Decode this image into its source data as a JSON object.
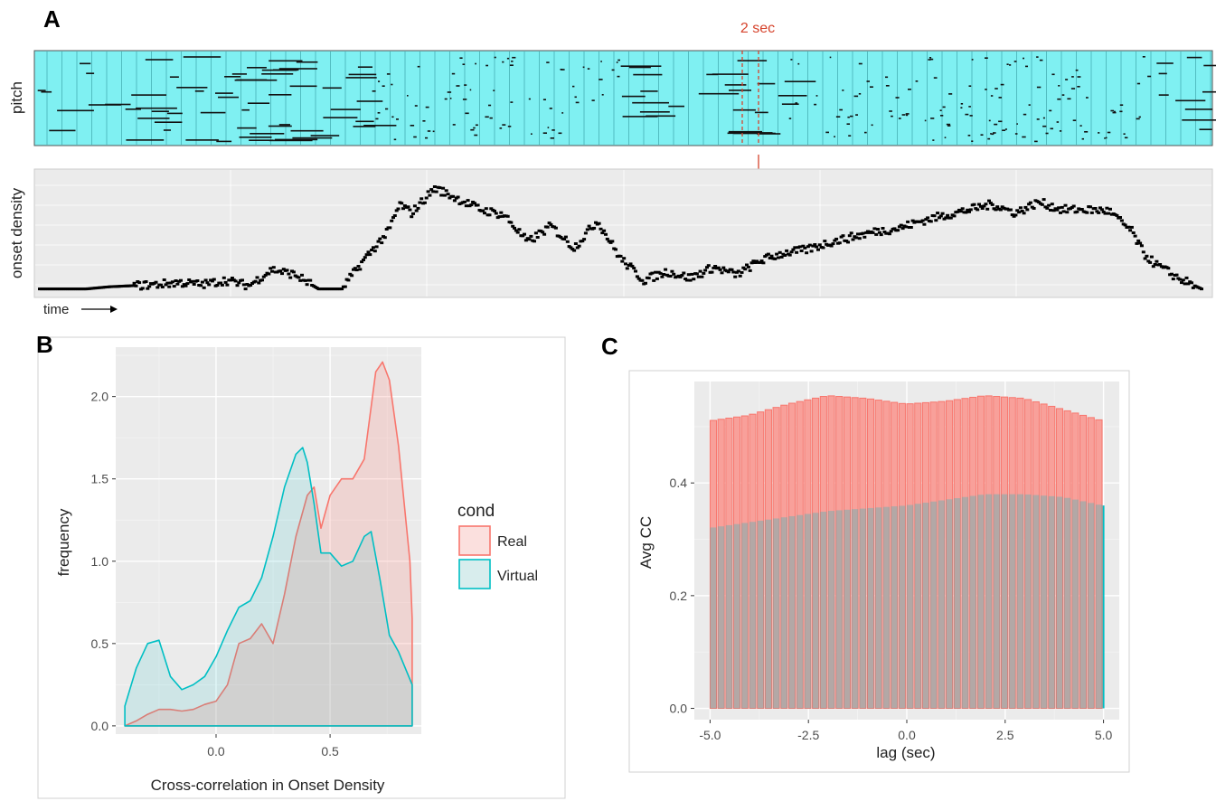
{
  "chart_data": [
    {
      "panel": "A",
      "type": "line",
      "annotation": "2 sec",
      "ylabel_top": "pitch",
      "ylabel_bottom": "onset density",
      "xlabel": "time",
      "colors": {
        "piano_roll_bg": "#7ff0f2",
        "annotation": "#d6432c",
        "series": "#000000"
      },
      "onset_density": {
        "x": [
          0,
          0.02,
          0.04,
          0.06,
          0.08,
          0.1,
          0.12,
          0.14,
          0.16,
          0.18,
          0.2,
          0.22,
          0.24,
          0.26,
          0.28,
          0.3,
          0.31,
          0.32,
          0.34,
          0.36,
          0.38,
          0.4,
          0.42,
          0.44,
          0.46,
          0.48,
          0.5,
          0.52,
          0.54,
          0.56,
          0.58,
          0.6,
          0.62,
          0.64,
          0.66,
          0.68,
          0.7,
          0.72,
          0.74,
          0.76,
          0.78,
          0.8,
          0.82,
          0.84,
          0.86,
          0.88,
          0.9,
          0.92,
          0.94,
          0.95,
          0.96,
          0.98,
          1.0
        ],
        "y": [
          0.02,
          0.02,
          0.02,
          0.04,
          0.05,
          0.06,
          0.08,
          0.06,
          0.1,
          0.05,
          0.2,
          0.15,
          0.02,
          0.02,
          0.3,
          0.55,
          0.8,
          0.72,
          0.95,
          0.85,
          0.75,
          0.7,
          0.45,
          0.6,
          0.4,
          0.65,
          0.3,
          0.1,
          0.18,
          0.12,
          0.22,
          0.15,
          0.28,
          0.35,
          0.38,
          0.45,
          0.5,
          0.55,
          0.58,
          0.65,
          0.7,
          0.75,
          0.8,
          0.72,
          0.82,
          0.75,
          0.75,
          0.74,
          0.55,
          0.35,
          0.25,
          0.12,
          0.02
        ]
      }
    },
    {
      "panel": "B",
      "type": "area",
      "xlabel": "Cross-correlation in Onset Density",
      "ylabel": "frequency",
      "xticks": [
        "0.0",
        "0.5"
      ],
      "yticks": [
        "0.0",
        "0.5",
        "1.0",
        "1.5",
        "2.0"
      ],
      "xlim": [
        -0.44,
        0.9
      ],
      "ylim": [
        -0.05,
        2.3
      ],
      "legend": {
        "title": "cond",
        "entries": [
          "Real",
          "Virtual"
        ],
        "position": "right"
      },
      "series": [
        {
          "name": "Real",
          "color": "#f8766d",
          "x": [
            -0.4,
            -0.35,
            -0.3,
            -0.25,
            -0.2,
            -0.15,
            -0.1,
            -0.05,
            0,
            0.05,
            0.1,
            0.15,
            0.2,
            0.25,
            0.3,
            0.35,
            0.4,
            0.43,
            0.46,
            0.5,
            0.55,
            0.6,
            0.65,
            0.7,
            0.73,
            0.76,
            0.8,
            0.85,
            0.86
          ],
          "y": [
            0,
            0.03,
            0.07,
            0.1,
            0.1,
            0.09,
            0.1,
            0.13,
            0.15,
            0.25,
            0.5,
            0.53,
            0.62,
            0.5,
            0.8,
            1.15,
            1.4,
            1.45,
            1.2,
            1.4,
            1.5,
            1.5,
            1.62,
            2.15,
            2.21,
            2.1,
            1.7,
            1.0,
            0.65
          ]
        },
        {
          "name": "Virtual",
          "color": "#00bfc4",
          "x": [
            -0.4,
            -0.35,
            -0.3,
            -0.25,
            -0.2,
            -0.15,
            -0.1,
            -0.05,
            0,
            0.05,
            0.1,
            0.15,
            0.2,
            0.25,
            0.3,
            0.35,
            0.38,
            0.4,
            0.43,
            0.46,
            0.5,
            0.55,
            0.6,
            0.65,
            0.68,
            0.72,
            0.76,
            0.8,
            0.86
          ],
          "y": [
            0.12,
            0.35,
            0.5,
            0.52,
            0.3,
            0.22,
            0.25,
            0.3,
            0.42,
            0.58,
            0.72,
            0.76,
            0.9,
            1.15,
            1.45,
            1.65,
            1.69,
            1.6,
            1.35,
            1.05,
            1.05,
            0.97,
            1.0,
            1.15,
            1.18,
            0.88,
            0.55,
            0.45,
            0.25
          ]
        }
      ]
    },
    {
      "panel": "C",
      "type": "bar",
      "xlabel": "lag (sec)",
      "ylabel": "Avg CC",
      "xticks": [
        "-5.0",
        "-2.5",
        "0.0",
        "2.5",
        "5.0"
      ],
      "yticks": [
        "0.0",
        "0.2",
        "0.4"
      ],
      "xlim": [
        -5.4,
        5.4
      ],
      "ylim": [
        -0.02,
        0.58
      ],
      "series": [
        {
          "name": "Real",
          "color": "#f8766d",
          "lag": [
            -5,
            -4,
            -3,
            -2,
            -1,
            0,
            1,
            2,
            3,
            4,
            5
          ],
          "y": [
            0.51,
            0.52,
            0.54,
            0.555,
            0.55,
            0.54,
            0.545,
            0.555,
            0.55,
            0.53,
            0.51
          ]
        },
        {
          "name": "Virtual",
          "color": "#00bfc4",
          "lag": [
            -5,
            -4,
            -3,
            -2,
            -1,
            0,
            1,
            2,
            3,
            4,
            5
          ],
          "y": [
            0.32,
            0.33,
            0.34,
            0.35,
            0.355,
            0.36,
            0.37,
            0.38,
            0.38,
            0.375,
            0.36
          ]
        }
      ]
    }
  ]
}
